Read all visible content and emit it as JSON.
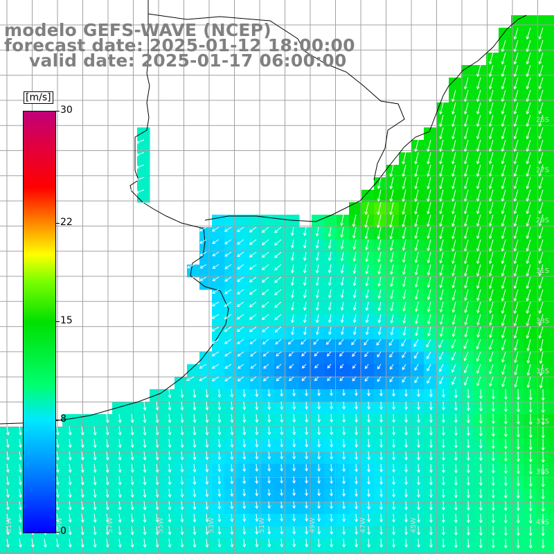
{
  "title": {
    "line1": "modelo GEFS-WAVE (NCEP)",
    "line2": "forecast date: 2025-01-12 18:00:00",
    "line3": "valid date: 2025-01-17 06:00:00"
  },
  "colorbar": {
    "unit_label": "[m/s]",
    "min": 0,
    "max": 30,
    "ticks": [
      {
        "value": 30,
        "label": "30"
      },
      {
        "value": 22,
        "label": "22"
      },
      {
        "value": 15,
        "label": "15"
      },
      {
        "value": 8,
        "label": "8"
      },
      {
        "value": 0,
        "label": "0"
      }
    ]
  },
  "map": {
    "lon_labels": [
      "61W",
      "59W",
      "57W",
      "55W",
      "53W",
      "51W",
      "49W",
      "47W",
      "45W"
    ],
    "lat_labels": [
      "25S",
      "27S",
      "29S",
      "31S",
      "33S",
      "35S",
      "37S",
      "39S",
      "41S"
    ],
    "colors": {
      "land": "#ffffff",
      "grid": "#a0a0a0",
      "coast": "#000000",
      "arrows": "#ffffff"
    }
  }
}
